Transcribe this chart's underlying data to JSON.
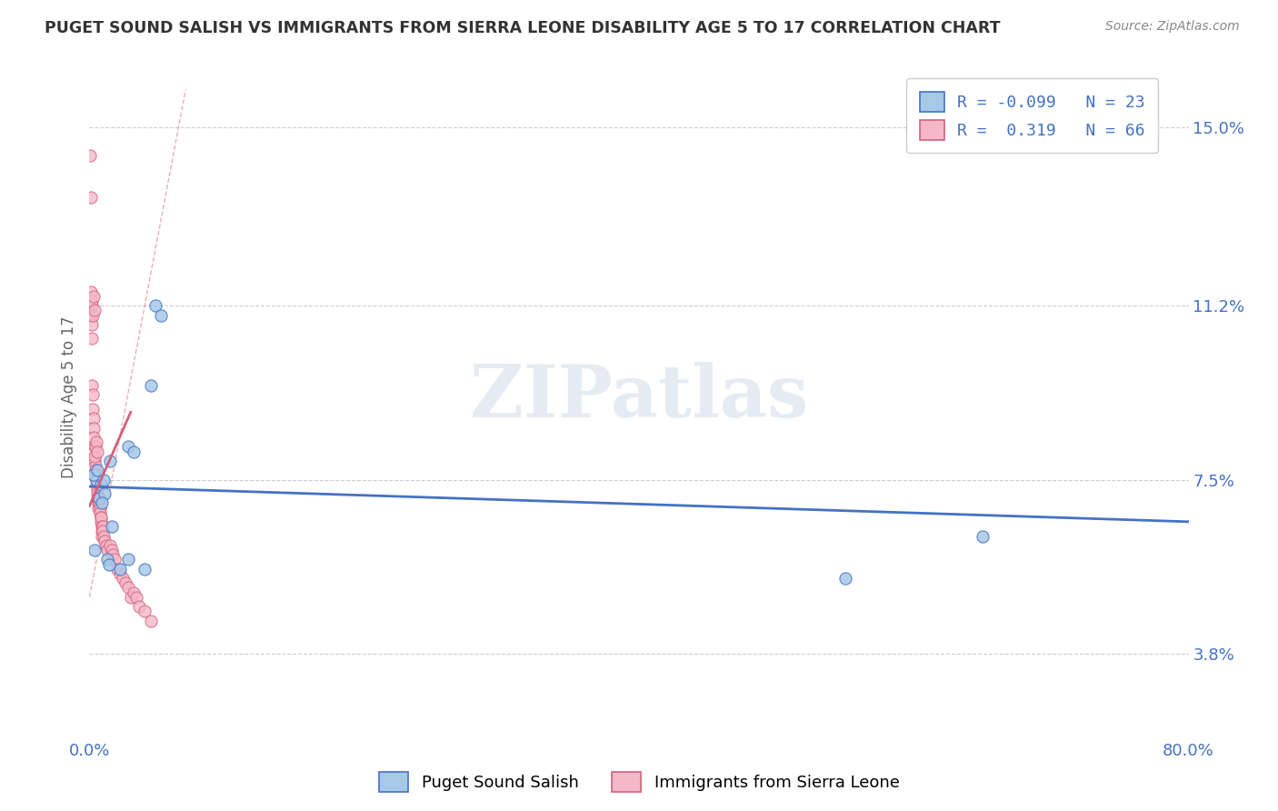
{
  "title": "PUGET SOUND SALISH VS IMMIGRANTS FROM SIERRA LEONE DISABILITY AGE 5 TO 17 CORRELATION CHART",
  "source": "Source: ZipAtlas.com",
  "ylabel": "Disability Age 5 to 17",
  "xlim": [
    0.0,
    80.0
  ],
  "ylim": [
    2.0,
    16.5
  ],
  "yticks": [
    3.8,
    7.5,
    11.2,
    15.0
  ],
  "ytick_labels": [
    "3.8%",
    "7.5%",
    "11.2%",
    "15.0%"
  ],
  "blue_R": -0.099,
  "blue_N": 23,
  "pink_R": 0.319,
  "pink_N": 66,
  "blue_color": "#a8c8e8",
  "pink_color": "#f4b8c8",
  "blue_line_color": "#4472c4",
  "pink_line_color": "#d4607a",
  "legend_label_blue": "Puget Sound Salish",
  "legend_label_pink": "Immigrants from Sierra Leone",
  "watermark": "ZIPatlas",
  "blue_scatter_x": [
    2.8,
    0.5,
    4.5,
    0.3,
    0.8,
    1.0,
    0.4,
    0.6,
    0.7,
    1.5,
    1.3,
    4.8,
    5.2,
    2.2,
    2.8,
    1.1,
    0.9,
    65.0,
    55.0,
    3.2,
    1.6,
    4.0,
    1.4
  ],
  "blue_scatter_y": [
    8.2,
    7.5,
    9.5,
    7.6,
    7.4,
    7.5,
    6.0,
    7.7,
    7.1,
    7.9,
    5.8,
    11.2,
    11.0,
    5.6,
    5.8,
    7.2,
    7.0,
    6.3,
    5.4,
    8.1,
    6.5,
    5.6,
    5.7
  ],
  "pink_scatter_x": [
    0.05,
    0.08,
    0.1,
    0.12,
    0.15,
    0.18,
    0.2,
    0.22,
    0.25,
    0.28,
    0.3,
    0.32,
    0.35,
    0.38,
    0.4,
    0.42,
    0.45,
    0.48,
    0.5,
    0.52,
    0.55,
    0.58,
    0.6,
    0.62,
    0.65,
    0.68,
    0.7,
    0.72,
    0.75,
    0.78,
    0.8,
    0.82,
    0.85,
    0.88,
    0.9,
    0.92,
    0.95,
    0.98,
    1.0,
    1.1,
    1.2,
    1.3,
    1.5,
    1.6,
    1.7,
    1.8,
    2.0,
    2.2,
    2.4,
    2.6,
    2.8,
    3.0,
    3.2,
    3.4,
    3.6,
    4.0,
    4.5,
    0.15,
    0.2,
    0.25,
    0.3,
    0.35,
    0.4,
    0.45,
    0.5,
    0.55
  ],
  "pink_scatter_y": [
    14.4,
    13.5,
    11.5,
    11.0,
    10.8,
    10.5,
    9.5,
    9.3,
    9.0,
    8.8,
    8.6,
    8.4,
    8.2,
    8.0,
    7.9,
    7.8,
    7.7,
    7.6,
    7.5,
    7.4,
    7.3,
    7.2,
    7.1,
    7.0,
    6.9,
    7.0,
    7.1,
    7.0,
    6.9,
    6.8,
    6.7,
    6.6,
    6.7,
    6.5,
    6.4,
    6.3,
    6.5,
    6.4,
    6.3,
    6.2,
    6.1,
    6.0,
    6.1,
    6.0,
    5.9,
    5.8,
    5.6,
    5.5,
    5.4,
    5.3,
    5.2,
    5.0,
    5.1,
    5.0,
    4.8,
    4.7,
    4.5,
    11.2,
    11.3,
    11.0,
    11.4,
    11.1,
    8.0,
    8.2,
    8.3,
    8.1
  ]
}
